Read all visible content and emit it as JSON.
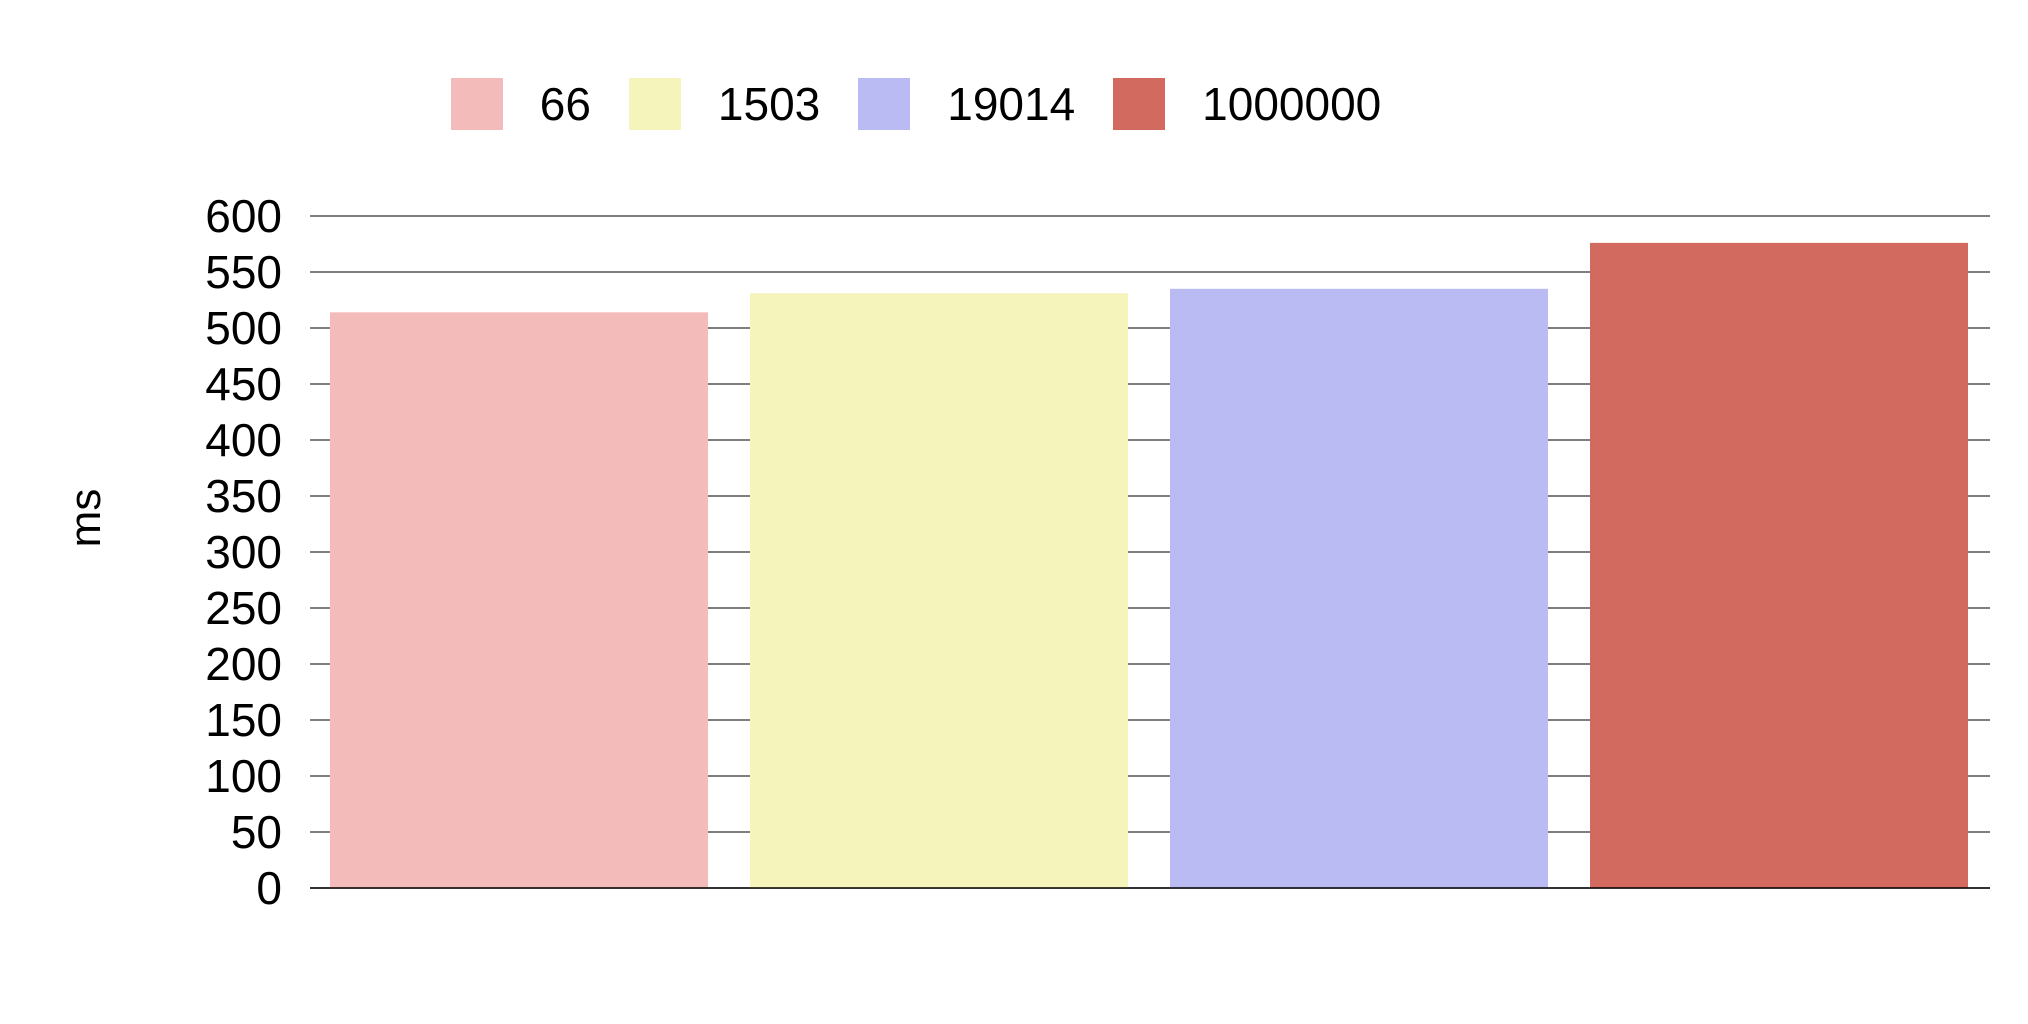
{
  "chart_data": {
    "type": "bar",
    "categories": [
      "66",
      "1503",
      "19014",
      "1000000"
    ],
    "series": [
      {
        "name": "66",
        "value": 514,
        "color": "#f4bbbb"
      },
      {
        "name": "1503",
        "value": 531,
        "color": "#f4f4bb"
      },
      {
        "name": "19014",
        "value": 535,
        "color": "#bbbbf4"
      },
      {
        "name": "1000000",
        "value": 576,
        "color": "#d26a60"
      }
    ],
    "ylabel": "ms",
    "ylim": [
      0,
      600
    ],
    "yticks": [
      "0",
      "50",
      "100",
      "150",
      "200",
      "250",
      "300",
      "350",
      "400",
      "450",
      "500",
      "550",
      "600"
    ],
    "grid": true,
    "legend_position": "top"
  }
}
